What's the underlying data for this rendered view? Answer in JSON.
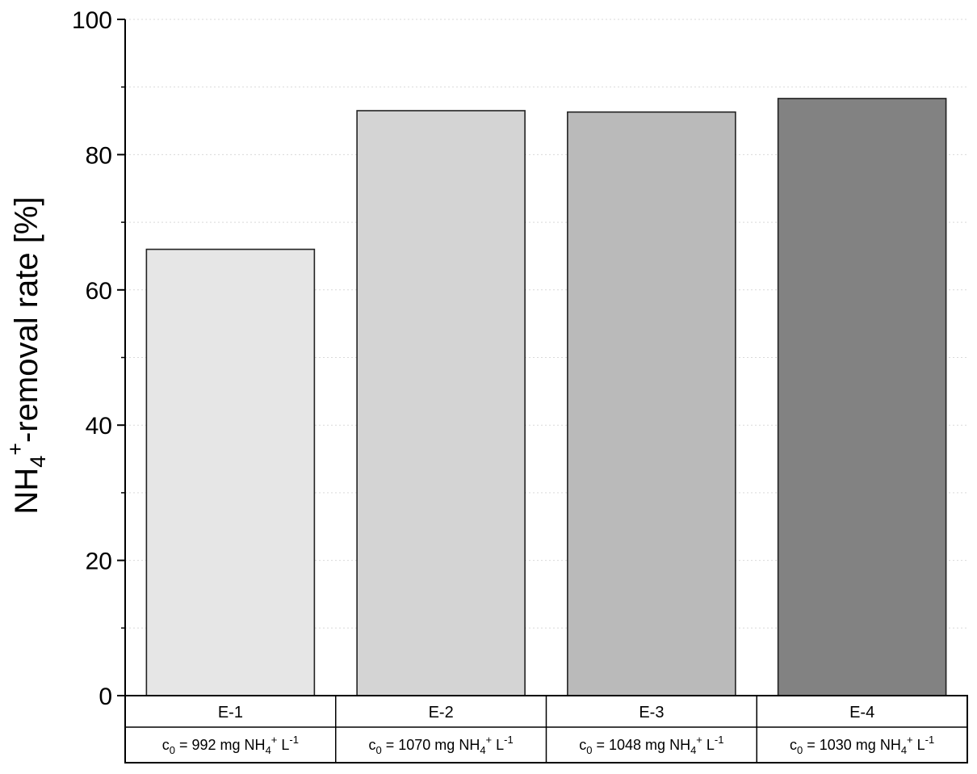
{
  "chart_data": {
    "type": "bar",
    "ylabel": {
      "main": "NH",
      "sub": "4",
      "sup": "+",
      "rest": "-removal rate [%]"
    },
    "ylim": [
      0,
      100
    ],
    "yticks": [
      "0",
      "20",
      "40",
      "60",
      "80",
      "100"
    ],
    "ytick_values": [
      0,
      20,
      40,
      60,
      80,
      100
    ],
    "grid": true,
    "categories": [
      "E-1",
      "E-2",
      "E-3",
      "E-4"
    ],
    "values": [
      66,
      86.5,
      86.3,
      88.3
    ],
    "colors": [
      "#e6e6e6",
      "#d4d4d4",
      "#bababa",
      "#828282"
    ],
    "conditions": [
      {
        "c": "c",
        "c_sub": "0",
        "text": " = 992 mg NH",
        "nh_sub": "4",
        "nh_sup": "+",
        "unit": " L",
        "unit_sup": "-1"
      },
      {
        "c": "c",
        "c_sub": "0",
        "text": " = 1070 mg NH",
        "nh_sub": "4",
        "nh_sup": "+",
        "unit": " L",
        "unit_sup": "-1"
      },
      {
        "c": "c",
        "c_sub": "0",
        "text": " = 1048 mg NH",
        "nh_sub": "4",
        "nh_sup": "+",
        "unit": " L",
        "unit_sup": "-1"
      },
      {
        "c": "c",
        "c_sub": "0",
        "text": " = 1030 mg NH",
        "nh_sub": "4",
        "nh_sup": "+",
        "unit": " L",
        "unit_sup": "-1"
      }
    ]
  }
}
